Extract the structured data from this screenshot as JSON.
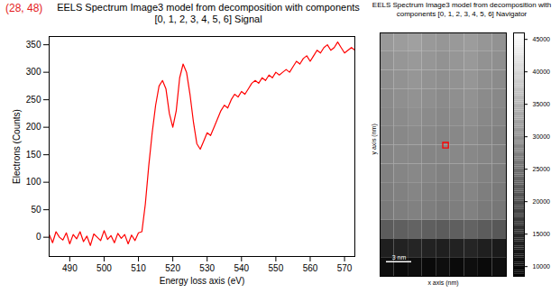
{
  "chart_data": [
    {
      "type": "line",
      "title": "EELS Spectrum Image3 model from decomposition with components [0, 1, 2, 3, 4, 5, 6] Signal",
      "annotation": "(28, 48)",
      "x_label": "Energy loss axis (eV)",
      "y_label": "Electrons (Counts)",
      "x": [
        484,
        485,
        486,
        487,
        488,
        489,
        490,
        491,
        492,
        493,
        494,
        495,
        496,
        497,
        498,
        499,
        500,
        501,
        502,
        503,
        504,
        505,
        506,
        507,
        508,
        509,
        510,
        511,
        512,
        513,
        514,
        515,
        516,
        517,
        518,
        519,
        520,
        521,
        522,
        523,
        524,
        525,
        526,
        527,
        528,
        529,
        530,
        531,
        532,
        533,
        534,
        535,
        536,
        537,
        538,
        539,
        540,
        541,
        542,
        543,
        544,
        545,
        546,
        547,
        548,
        549,
        550,
        551,
        552,
        553,
        554,
        555,
        556,
        557,
        558,
        559,
        560,
        561,
        562,
        563,
        564,
        565,
        566,
        567,
        568,
        569,
        570,
        571,
        572,
        573
      ],
      "values": [
        5,
        -10,
        10,
        0,
        -5,
        8,
        -12,
        5,
        -3,
        10,
        -8,
        2,
        -15,
        6,
        0,
        -6,
        12,
        -4,
        3,
        -10,
        7,
        -2,
        5,
        -12,
        4,
        -6,
        8,
        10,
        60,
        130,
        190,
        240,
        275,
        285,
        270,
        225,
        200,
        230,
        290,
        315,
        300,
        260,
        210,
        170,
        160,
        175,
        190,
        185,
        200,
        215,
        230,
        240,
        235,
        250,
        260,
        255,
        265,
        260,
        270,
        280,
        285,
        280,
        290,
        285,
        295,
        290,
        300,
        295,
        300,
        305,
        300,
        310,
        320,
        315,
        325,
        330,
        320,
        330,
        340,
        335,
        345,
        350,
        340,
        345,
        355,
        345,
        335,
        340,
        345,
        340
      ],
      "color": "#ff0000",
      "xlim": [
        484,
        573
      ],
      "ylim": [
        -35,
        365
      ],
      "xticks": [
        490,
        500,
        510,
        520,
        530,
        540,
        550,
        560,
        570
      ],
      "yticks": [
        0,
        50,
        100,
        150,
        200,
        250,
        300,
        350
      ],
      "grid": false
    },
    {
      "type": "heatmap",
      "title": "EELS Spectrum Image3 model from decomposition with components [0, 1, 2, 3, 4, 5, 6] Navigator",
      "x_label": "x axis (nm)",
      "y_label": "y axis (nm)",
      "scale_bar_label": "3 nm",
      "tick_labels": false,
      "xlim": [
        0,
        54
      ],
      "ylim": [
        0,
        104
      ],
      "x_bins": [
        0,
        6,
        12,
        18,
        24,
        30,
        36,
        42,
        48,
        54
      ],
      "y_bins": [
        0,
        8,
        16,
        24,
        32,
        40,
        48,
        56,
        64,
        72,
        80,
        88,
        96,
        104
      ],
      "cells": [
        [
          31000,
          31500,
          32000,
          31000,
          30500,
          31000,
          31500,
          30500,
          30000
        ],
        [
          30000,
          30500,
          31000,
          30500,
          30000,
          30500,
          31000,
          30000,
          29500
        ],
        [
          29500,
          30000,
          30500,
          30000,
          29500,
          30000,
          30500,
          29500,
          29000
        ],
        [
          29000,
          29500,
          30000,
          29500,
          29000,
          29500,
          30000,
          29000,
          28500
        ],
        [
          28500,
          29000,
          29500,
          29000,
          28500,
          29000,
          29500,
          28500,
          28000
        ],
        [
          28000,
          28500,
          29000,
          28500,
          28000,
          28500,
          29000,
          28000,
          27500
        ],
        [
          28000,
          28500,
          28500,
          28000,
          28000,
          28500,
          28500,
          28000,
          27500
        ],
        [
          27500,
          28000,
          28500,
          28000,
          27500,
          28000,
          28500,
          27500,
          27000
        ],
        [
          27000,
          27500,
          28000,
          27500,
          27000,
          27500,
          28000,
          27000,
          26500
        ],
        [
          26500,
          27000,
          27500,
          27000,
          26500,
          27000,
          27500,
          26500,
          26000
        ],
        [
          22000,
          22500,
          23000,
          22500,
          22000,
          22500,
          23000,
          22000,
          21500
        ],
        [
          13000,
          13500,
          14000,
          13500,
          13000,
          13500,
          14000,
          13000,
          12500
        ],
        [
          10500,
          10000,
          10500,
          10000,
          10500,
          10000,
          10500,
          10000,
          10500
        ]
      ],
      "selected": {
        "x": 28,
        "y": 48,
        "color": "#ff0000",
        "marker": "square"
      },
      "colorbar": {
        "range": [
          8500,
          46000
        ],
        "ticks": [
          10000,
          15000,
          20000,
          25000,
          30000,
          35000,
          40000,
          45000
        ]
      }
    }
  ]
}
